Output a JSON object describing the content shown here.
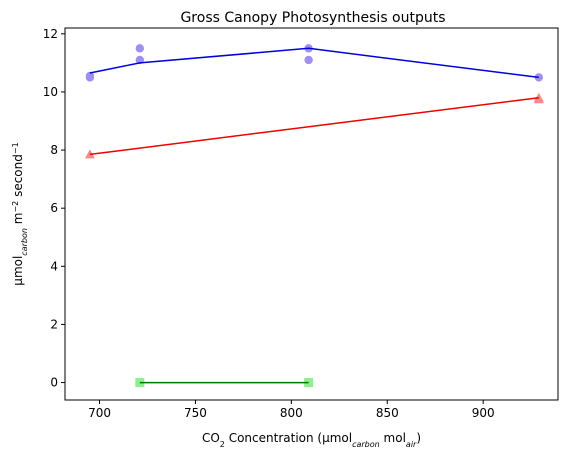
{
  "chart_data": {
    "type": "scatter",
    "title": "Gross Canopy Photosynthesis outputs",
    "xlabel": {
      "parts": [
        {
          "text": "CO",
          "style": "normal"
        },
        {
          "text": "2",
          "style": "sub-plain"
        },
        {
          "text": " Concentration (µmol",
          "style": "normal"
        },
        {
          "text": "carbon",
          "style": "sub"
        },
        {
          "text": " mol",
          "style": "normal"
        },
        {
          "text": "air",
          "style": "sub"
        },
        {
          "text": ")",
          "style": "normal"
        }
      ]
    },
    "ylabel": {
      "parts": [
        {
          "text": "µmol",
          "style": "normal"
        },
        {
          "text": "carbon",
          "style": "sub"
        },
        {
          "text": " m",
          "style": "normal"
        },
        {
          "text": "−2",
          "style": "sup"
        },
        {
          "text": " second",
          "style": "normal"
        },
        {
          "text": "−1",
          "style": "sup"
        }
      ]
    },
    "xlim": [
      682,
      939
    ],
    "ylim": [
      -0.6,
      12.2
    ],
    "xticks": [
      700,
      750,
      800,
      850,
      900
    ],
    "yticks": [
      0,
      2,
      4,
      6,
      8,
      10,
      12
    ],
    "grid": false,
    "series": [
      {
        "color": "#0000dd",
        "marker": "circle",
        "marker_color": "#9f90ee",
        "points": [
          {
            "x": 695,
            "y": 10.5
          },
          {
            "x": 695,
            "y": 10.55
          },
          {
            "x": 721,
            "y": 11.1
          },
          {
            "x": 721,
            "y": 11.5
          },
          {
            "x": 809,
            "y": 11.1
          },
          {
            "x": 809,
            "y": 11.5
          },
          {
            "x": 929,
            "y": 10.5
          }
        ],
        "line": [
          {
            "x": 695,
            "y": 10.65
          },
          {
            "x": 721,
            "y": 11.0
          },
          {
            "x": 809,
            "y": 11.5
          },
          {
            "x": 929,
            "y": 10.5
          }
        ]
      },
      {
        "color": "#ee0000",
        "marker": "triangle",
        "marker_color": "#fa8a8a",
        "points": [
          {
            "x": 695,
            "y": 7.85
          },
          {
            "x": 929,
            "y": 9.8
          },
          {
            "x": 929,
            "y": 9.75
          }
        ],
        "line": [
          {
            "x": 695,
            "y": 7.85
          },
          {
            "x": 929,
            "y": 9.8
          }
        ]
      },
      {
        "color": "#007700",
        "marker": "square",
        "marker_color": "#8fee8f",
        "points": [
          {
            "x": 721,
            "y": 0.0
          },
          {
            "x": 809,
            "y": 0.0
          }
        ],
        "line": [
          {
            "x": 721,
            "y": 0.0
          },
          {
            "x": 809,
            "y": 0.0
          }
        ]
      }
    ]
  }
}
